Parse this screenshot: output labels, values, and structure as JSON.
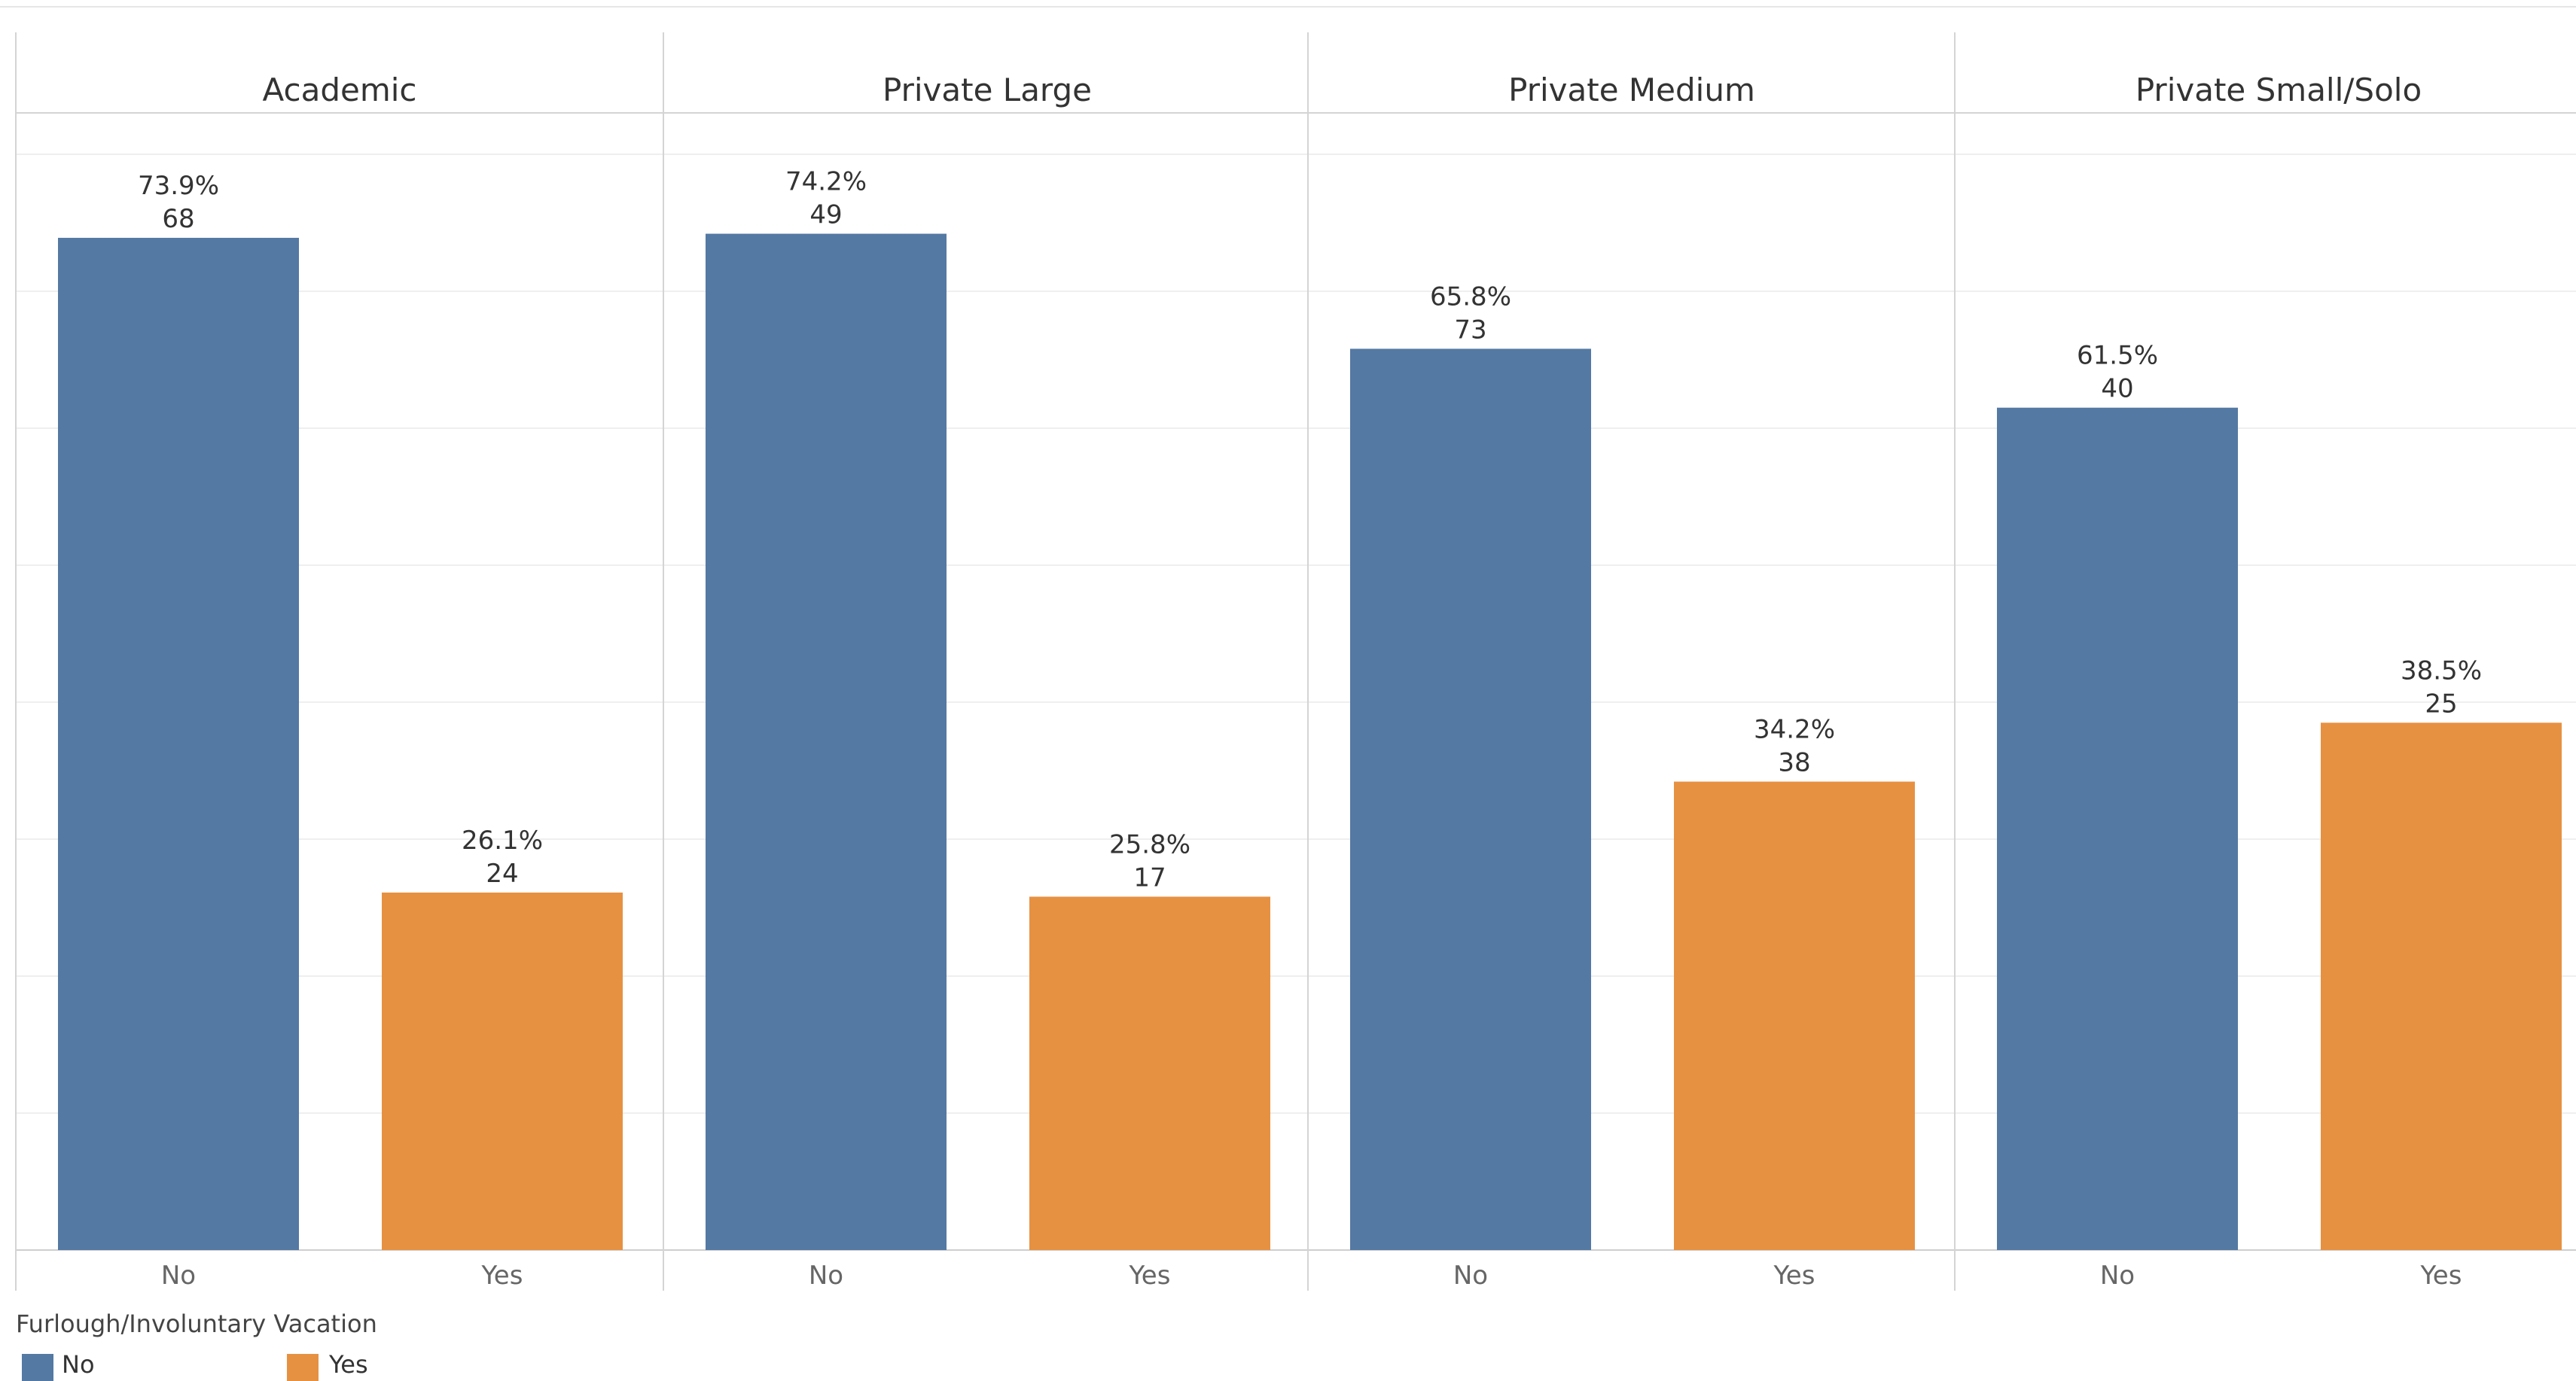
{
  "chart_data": {
    "type": "bar",
    "panels": [
      {
        "name": "Academic",
        "bars": [
          {
            "category": "No",
            "percent": 73.9,
            "count": 68,
            "percent_label": "73.9%",
            "count_label": "68"
          },
          {
            "category": "Yes",
            "percent": 26.1,
            "count": 24,
            "percent_label": "26.1%",
            "count_label": "24"
          }
        ]
      },
      {
        "name": "Private Large",
        "bars": [
          {
            "category": "No",
            "percent": 74.2,
            "count": 49,
            "percent_label": "74.2%",
            "count_label": "49"
          },
          {
            "category": "Yes",
            "percent": 25.8,
            "count": 17,
            "percent_label": "25.8%",
            "count_label": "17"
          }
        ]
      },
      {
        "name": "Private Medium",
        "bars": [
          {
            "category": "No",
            "percent": 65.8,
            "count": 73,
            "percent_label": "65.8%",
            "count_label": "73"
          },
          {
            "category": "Yes",
            "percent": 34.2,
            "count": 38,
            "percent_label": "34.2%",
            "count_label": "38"
          }
        ]
      },
      {
        "name": "Private Small/Solo",
        "bars": [
          {
            "category": "No",
            "percent": 61.5,
            "count": 40,
            "percent_label": "61.5%",
            "count_label": "40"
          },
          {
            "category": "Yes",
            "percent": 38.5,
            "count": 25,
            "percent_label": "38.5%",
            "count_label": "25"
          }
        ]
      }
    ],
    "ylim": [
      0,
      80
    ],
    "grid": true,
    "legend": {
      "title": "Furlough/Involuntary Vacation",
      "placement": "bottom-left",
      "items": [
        {
          "label": "No",
          "color": "#5479a3"
        },
        {
          "label": "Yes",
          "color": "#e69142"
        }
      ]
    }
  }
}
